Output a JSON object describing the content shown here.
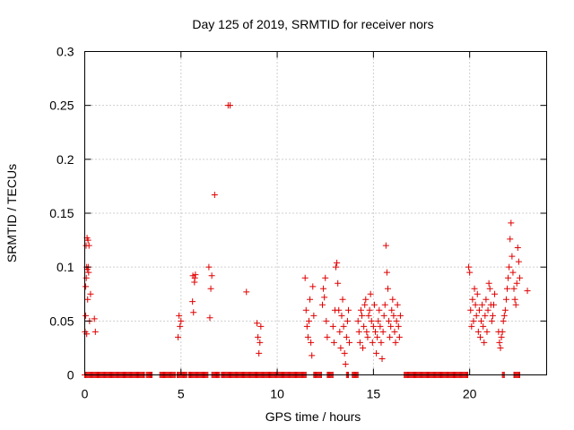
{
  "chart_data": {
    "type": "scatter",
    "title": "Day 125 of 2019, SRMTID for receiver nors",
    "xlabel": "GPS time / hours",
    "ylabel": "SRMTID / TECUs",
    "xlim": [
      0,
      24
    ],
    "ylim": [
      0,
      0.3
    ],
    "xticks": [
      0,
      5,
      10,
      15,
      20
    ],
    "xtick_labels": [
      "0",
      "5",
      "10",
      "15",
      "20"
    ],
    "yticks": [
      0,
      0.05,
      0.1,
      0.15,
      0.2,
      0.25,
      0.3
    ],
    "ytick_labels": [
      "0",
      "0.05",
      "0.1",
      "0.15",
      "0.2",
      "0.25",
      "0.3"
    ],
    "grid": true,
    "marker": "+",
    "color": "#e00000",
    "series": [
      {
        "name": "SRMTID",
        "points": [
          [
            0.02,
            0.04
          ],
          [
            0.05,
            0.082
          ],
          [
            0.07,
            0.12
          ],
          [
            0.08,
            0.09
          ],
          [
            0.1,
            0.1
          ],
          [
            0.12,
            0.127
          ],
          [
            0.13,
            0.098
          ],
          [
            0.15,
            0.07
          ],
          [
            0.17,
            0.125
          ],
          [
            0.18,
            0.1
          ],
          [
            0.2,
            0.095
          ],
          [
            0.22,
            0.12
          ],
          [
            0.25,
            0.05
          ],
          [
            0.3,
            0.075
          ],
          [
            0.5,
            0.052
          ],
          [
            0.55,
            0.04
          ],
          [
            0.1,
            0.038
          ],
          [
            0.05,
            0.055
          ],
          [
            4.85,
            0.035
          ],
          [
            4.9,
            0.055
          ],
          [
            4.95,
            0.045
          ],
          [
            5.0,
            0.05
          ],
          [
            5.6,
            0.068
          ],
          [
            5.62,
            0.092
          ],
          [
            5.65,
            0.058
          ],
          [
            5.7,
            0.086
          ],
          [
            5.72,
            0.09
          ],
          [
            5.75,
            0.093
          ],
          [
            6.45,
            0.1
          ],
          [
            6.5,
            0.053
          ],
          [
            6.55,
            0.08
          ],
          [
            6.6,
            0.092
          ],
          [
            6.75,
            0.167
          ],
          [
            7.45,
            0.25
          ],
          [
            7.55,
            0.25
          ],
          [
            8.4,
            0.077
          ],
          [
            8.95,
            0.048
          ],
          [
            9.0,
            0.035
          ],
          [
            9.05,
            0.02
          ],
          [
            9.1,
            0.03
          ],
          [
            9.15,
            0.045
          ],
          [
            11.45,
            0.09
          ],
          [
            11.5,
            0.06
          ],
          [
            11.55,
            0.045
          ],
          [
            11.6,
            0.035
          ],
          [
            11.65,
            0.05
          ],
          [
            11.7,
            0.07
          ],
          [
            11.75,
            0.03
          ],
          [
            11.8,
            0.018
          ],
          [
            11.85,
            0.082
          ],
          [
            11.9,
            0.055
          ],
          [
            12.35,
            0.065
          ],
          [
            12.4,
            0.08
          ],
          [
            12.45,
            0.072
          ],
          [
            12.5,
            0.09
          ],
          [
            12.55,
            0.05
          ],
          [
            12.6,
            0.035
          ],
          [
            12.9,
            0.045
          ],
          [
            12.95,
            0.03
          ],
          [
            13.0,
            0.06
          ],
          [
            13.05,
            0.1
          ],
          [
            13.1,
            0.104
          ],
          [
            13.15,
            0.085
          ],
          [
            13.2,
            0.06
          ],
          [
            13.25,
            0.04
          ],
          [
            13.3,
            0.025
          ],
          [
            13.35,
            0.055
          ],
          [
            13.4,
            0.07
          ],
          [
            13.45,
            0.045
          ],
          [
            13.5,
            0.02
          ],
          [
            13.55,
            0.01
          ],
          [
            13.6,
            0.035
          ],
          [
            13.65,
            0.05
          ],
          [
            13.7,
            0.06
          ],
          [
            13.75,
            0.03
          ],
          [
            14.2,
            0.05
          ],
          [
            14.25,
            0.04
          ],
          [
            14.3,
            0.03
          ],
          [
            14.35,
            0.06
          ],
          [
            14.4,
            0.055
          ],
          [
            14.45,
            0.025
          ],
          [
            14.5,
            0.045
          ],
          [
            14.55,
            0.065
          ],
          [
            14.6,
            0.07
          ],
          [
            14.65,
            0.04
          ],
          [
            14.7,
            0.035
          ],
          [
            14.75,
            0.055
          ],
          [
            14.8,
            0.06
          ],
          [
            14.85,
            0.075
          ],
          [
            14.9,
            0.05
          ],
          [
            14.95,
            0.03
          ],
          [
            15.0,
            0.045
          ],
          [
            15.05,
            0.065
          ],
          [
            15.1,
            0.04
          ],
          [
            15.15,
            0.02
          ],
          [
            15.2,
            0.035
          ],
          [
            15.25,
            0.05
          ],
          [
            15.3,
            0.06
          ],
          [
            15.35,
            0.045
          ],
          [
            15.4,
            0.03
          ],
          [
            15.45,
            0.015
          ],
          [
            15.5,
            0.04
          ],
          [
            15.55,
            0.055
          ],
          [
            15.6,
            0.065
          ],
          [
            15.65,
            0.12
          ],
          [
            15.7,
            0.095
          ],
          [
            15.75,
            0.08
          ],
          [
            15.8,
            0.05
          ],
          [
            15.85,
            0.035
          ],
          [
            15.9,
            0.045
          ],
          [
            15.95,
            0.06
          ],
          [
            16.0,
            0.07
          ],
          [
            16.05,
            0.055
          ],
          [
            16.1,
            0.04
          ],
          [
            16.15,
            0.03
          ],
          [
            16.2,
            0.05
          ],
          [
            16.25,
            0.065
          ],
          [
            16.3,
            0.045
          ],
          [
            16.35,
            0.035
          ],
          [
            16.4,
            0.055
          ],
          [
            19.95,
            0.1
          ],
          [
            20.0,
            0.095
          ],
          [
            20.05,
            0.06
          ],
          [
            20.1,
            0.045
          ],
          [
            20.15,
            0.07
          ],
          [
            20.2,
            0.05
          ],
          [
            20.25,
            0.08
          ],
          [
            20.3,
            0.065
          ],
          [
            20.35,
            0.055
          ],
          [
            20.4,
            0.075
          ],
          [
            20.45,
            0.04
          ],
          [
            20.5,
            0.06
          ],
          [
            20.55,
            0.035
          ],
          [
            20.6,
            0.05
          ],
          [
            20.65,
            0.065
          ],
          [
            20.7,
            0.045
          ],
          [
            20.75,
            0.03
          ],
          [
            20.8,
            0.055
          ],
          [
            20.85,
            0.07
          ],
          [
            20.9,
            0.04
          ],
          [
            20.95,
            0.06
          ],
          [
            21.0,
            0.085
          ],
          [
            21.05,
            0.08
          ],
          [
            21.1,
            0.065
          ],
          [
            21.15,
            0.05
          ],
          [
            21.2,
            0.055
          ],
          [
            21.25,
            0.065
          ],
          [
            21.3,
            0.075
          ],
          [
            21.5,
            0.04
          ],
          [
            21.55,
            0.03
          ],
          [
            21.6,
            0.025
          ],
          [
            21.65,
            0.035
          ],
          [
            21.7,
            0.04
          ],
          [
            21.75,
            0.05
          ],
          [
            21.8,
            0.055
          ],
          [
            21.85,
            0.06
          ],
          [
            21.9,
            0.07
          ],
          [
            21.95,
            0.08
          ],
          [
            22.0,
            0.09
          ],
          [
            22.05,
            0.1
          ],
          [
            22.1,
            0.126
          ],
          [
            22.15,
            0.141
          ],
          [
            22.2,
            0.11
          ],
          [
            22.25,
            0.095
          ],
          [
            22.3,
            0.08
          ],
          [
            22.35,
            0.07
          ],
          [
            22.4,
            0.065
          ],
          [
            22.45,
            0.085
          ],
          [
            22.5,
            0.118
          ],
          [
            22.55,
            0.105
          ],
          [
            22.6,
            0.09
          ],
          [
            23.0,
            0.078
          ]
        ]
      }
    ],
    "zero_runs": [
      [
        0.0,
        0.55
      ],
      [
        0.6,
        3.1
      ],
      [
        3.2,
        3.5
      ],
      [
        3.9,
        4.7
      ],
      [
        4.8,
        5.3
      ],
      [
        5.4,
        6.4
      ],
      [
        6.6,
        7.0
      ],
      [
        7.1,
        11.5
      ],
      [
        11.9,
        12.3
      ],
      [
        12.6,
        12.9
      ],
      [
        13.6,
        13.7
      ],
      [
        13.9,
        14.2
      ],
      [
        16.6,
        19.9
      ],
      [
        21.7,
        21.8
      ],
      [
        22.3,
        22.6
      ]
    ]
  }
}
